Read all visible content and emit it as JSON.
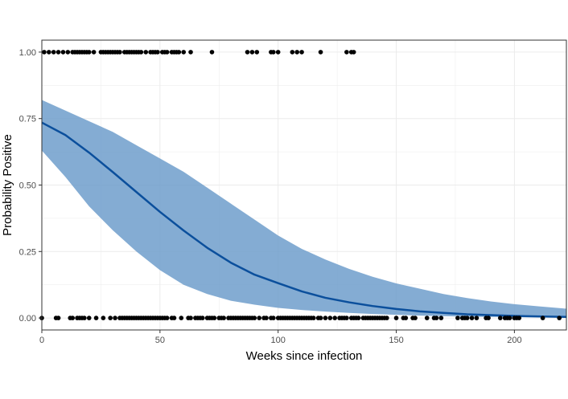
{
  "chart_data": {
    "type": "scatter",
    "xlabel": "Weeks since infection",
    "ylabel": "Probability Positive",
    "xlim": [
      0,
      222
    ],
    "ylim": [
      -0.045,
      1.045
    ],
    "x_ticks": [
      0,
      50,
      100,
      150,
      200
    ],
    "x_tick_labels": [
      "0",
      "50",
      "100",
      "150",
      "200"
    ],
    "y_ticks": [
      0,
      0.25,
      0.5,
      0.75,
      1.0
    ],
    "y_tick_labels": [
      "0.00",
      "0.25",
      "0.50",
      "0.75",
      "1.00"
    ],
    "grid": true,
    "colors": {
      "points": "#000000",
      "fit_line": "#0b4f9c",
      "ci_band": "#6f9dcb",
      "grid": "#ebebeb",
      "panel_border": "#333333"
    },
    "series": [
      {
        "type": "scatter",
        "y": 1,
        "x": [
          1,
          3,
          5,
          7,
          9,
          11,
          13,
          14,
          15,
          16,
          17,
          18,
          19,
          20,
          22,
          25,
          26,
          27,
          28,
          29,
          30,
          31,
          32,
          33,
          35,
          36,
          37,
          38,
          39,
          40,
          41,
          42,
          44,
          46,
          47,
          48,
          49,
          51,
          52,
          53,
          55,
          56,
          57,
          58,
          60,
          63,
          72,
          87,
          89,
          91,
          97,
          98,
          100,
          106,
          108,
          110,
          118,
          129,
          131,
          132
        ]
      },
      {
        "type": "scatter",
        "y": 0,
        "x": [
          0,
          6,
          7,
          12,
          13,
          15,
          16,
          17,
          18,
          20,
          23,
          26,
          29,
          31,
          33,
          34,
          35,
          36,
          37,
          38,
          39,
          40,
          41,
          42,
          43,
          44,
          45,
          46,
          47,
          48,
          49,
          50,
          51,
          52,
          53,
          55,
          56,
          59,
          62,
          63,
          65,
          66,
          67,
          68,
          70,
          71,
          72,
          73,
          75,
          76,
          77,
          79,
          80,
          81,
          82,
          83,
          84,
          85,
          86,
          87,
          88,
          89,
          90,
          92,
          94,
          95,
          97,
          98,
          100,
          101,
          102,
          103,
          104,
          105,
          106,
          107,
          108,
          109,
          110,
          111,
          112,
          113,
          114,
          115,
          117,
          118,
          120,
          122,
          124,
          126,
          127,
          128,
          129,
          131,
          132,
          133,
          134,
          136,
          137,
          138,
          139,
          140,
          141,
          142,
          143,
          144,
          145,
          146,
          150,
          153,
          154,
          157,
          158,
          163,
          166,
          167,
          169,
          176,
          178,
          179,
          180,
          182,
          184,
          188,
          189,
          194,
          196,
          197,
          198,
          200,
          201,
          202,
          212,
          219
        ]
      },
      {
        "type": "line",
        "name": "fit",
        "x": [
          0,
          10,
          20,
          30,
          40,
          50,
          60,
          70,
          80,
          90,
          100,
          110,
          120,
          130,
          140,
          150,
          160,
          170,
          180,
          190,
          200,
          210,
          222
        ],
        "y": [
          0.735,
          0.688,
          0.622,
          0.549,
          0.474,
          0.399,
          0.329,
          0.264,
          0.208,
          0.163,
          0.131,
          0.1,
          0.076,
          0.059,
          0.045,
          0.034,
          0.025,
          0.019,
          0.014,
          0.011,
          0.008,
          0.006,
          0.004
        ]
      },
      {
        "type": "band",
        "name": "95% CI",
        "x": [
          0,
          10,
          20,
          30,
          40,
          50,
          60,
          70,
          80,
          90,
          100,
          110,
          120,
          130,
          140,
          150,
          160,
          170,
          180,
          190,
          200,
          210,
          222
        ],
        "lower": [
          0.63,
          0.53,
          0.42,
          0.33,
          0.25,
          0.18,
          0.125,
          0.09,
          0.065,
          0.05,
          0.038,
          0.03,
          0.024,
          0.019,
          0.015,
          0.012,
          0.009,
          0.007,
          0.005,
          0.004,
          0.003,
          0.002,
          0.0015
        ],
        "upper": [
          0.82,
          0.78,
          0.74,
          0.7,
          0.65,
          0.6,
          0.55,
          0.49,
          0.43,
          0.37,
          0.31,
          0.26,
          0.22,
          0.185,
          0.155,
          0.13,
          0.11,
          0.09,
          0.075,
          0.062,
          0.052,
          0.044,
          0.035
        ]
      }
    ]
  }
}
